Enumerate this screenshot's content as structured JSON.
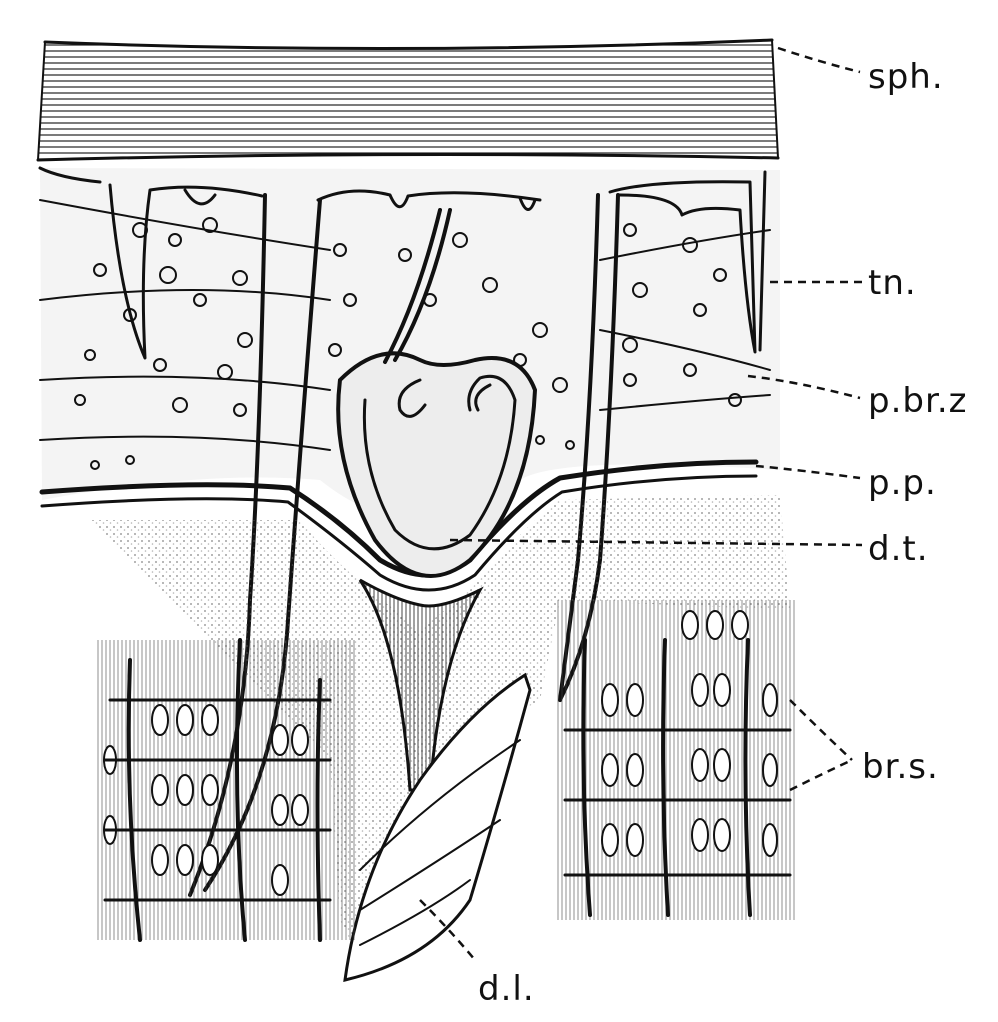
{
  "labels": {
    "sph": "sph.",
    "tn": "tn.",
    "pbrz": "p.br.z",
    "pp": "p.p.",
    "dt": "d.t.",
    "brs": "br.s.",
    "dl": "d.l."
  },
  "colors": {
    "ink": "#111111",
    "paper": "#ffffff",
    "stipple": "#cfcfcf",
    "cell": "#bdbdbd"
  }
}
